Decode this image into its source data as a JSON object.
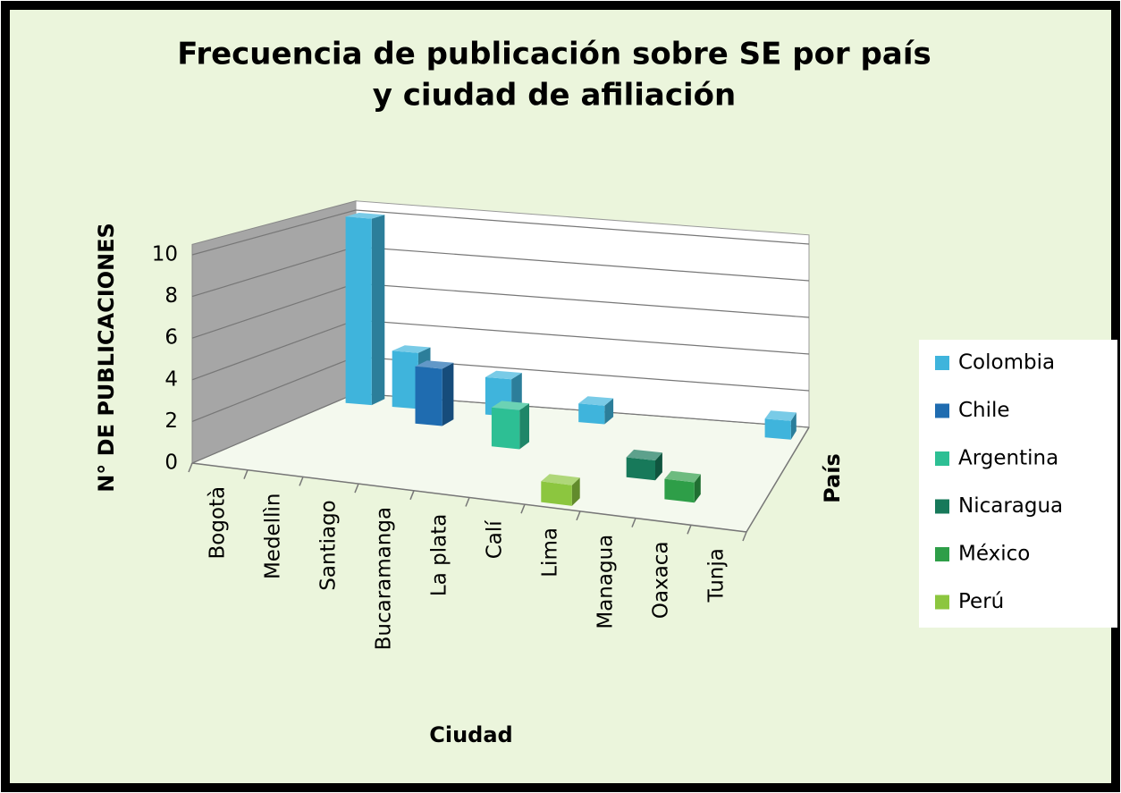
{
  "chart_data": {
    "type": "bar3d",
    "title": [
      "Frecuencia de publicación sobre SE por país",
      "y ciudad de afiliación"
    ],
    "y_label": "N° DE PUBLICACIONES",
    "x_label": "Ciudad",
    "z_label": "País",
    "categories": [
      "Bogotà",
      "Medellìn",
      "Santiago",
      "Bucaramanga",
      "La plata",
      "Calí",
      "Lima",
      "Managua",
      "Oaxaca",
      "Tunja"
    ],
    "series": [
      {
        "name": "Colombia",
        "color": "#3fb4dc",
        "values": [
          10,
          3,
          null,
          2,
          null,
          1,
          null,
          null,
          null,
          1
        ]
      },
      {
        "name": "Chile",
        "color": "#1f6cb0",
        "values": [
          null,
          null,
          3,
          null,
          null,
          null,
          null,
          null,
          null,
          null
        ]
      },
      {
        "name": "Argentina",
        "color": "#2dbf94",
        "values": [
          null,
          null,
          null,
          null,
          2,
          null,
          null,
          null,
          null,
          null
        ]
      },
      {
        "name": "Nicaragua",
        "color": "#17795a",
        "values": [
          null,
          null,
          null,
          null,
          null,
          null,
          null,
          1,
          null,
          null
        ]
      },
      {
        "name": "México",
        "color": "#2e9e48",
        "values": [
          null,
          null,
          null,
          null,
          null,
          null,
          null,
          null,
          1,
          null
        ]
      },
      {
        "name": "Perú",
        "color": "#8cc63f",
        "values": [
          null,
          null,
          null,
          null,
          null,
          null,
          1,
          null,
          null,
          null
        ]
      }
    ],
    "ylim": [
      0,
      10
    ],
    "yticks": [
      0,
      2,
      4,
      6,
      8,
      10
    ],
    "grid": true,
    "legend": "right"
  }
}
